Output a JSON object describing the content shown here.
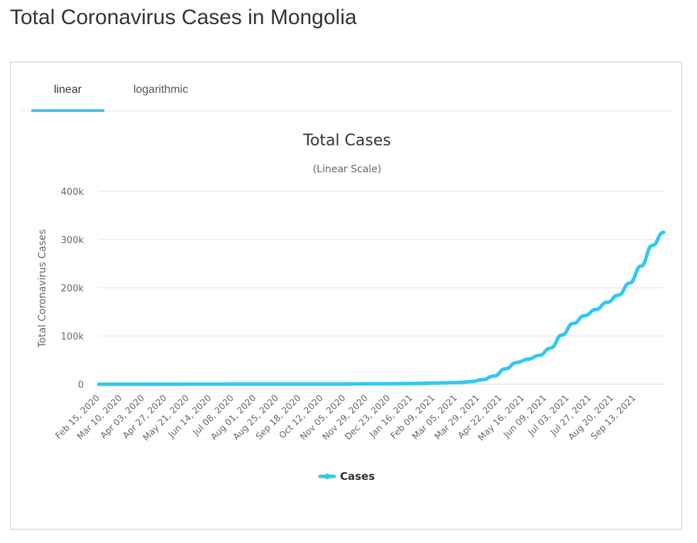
{
  "page": {
    "title": "Total Coronavirus Cases in Mongolia"
  },
  "tabs": [
    {
      "label": "linear",
      "active": true
    },
    {
      "label": "logarithmic",
      "active": false
    }
  ],
  "colors": {
    "accent": "#3ec8ee",
    "line": "#33c8f0",
    "grid": "#e6e6e6",
    "text": "#333333",
    "axis_text": "#666666"
  },
  "chart_data": {
    "type": "line",
    "title": "Total Cases",
    "subtitle": "(Linear Scale)",
    "ylabel": "Total Coronavirus Cases",
    "xlabel": "",
    "ylim": [
      0,
      400000
    ],
    "yticks": [
      0,
      100000,
      200000,
      300000,
      400000
    ],
    "ytick_labels": [
      "0",
      "100k",
      "200k",
      "300k",
      "400k"
    ],
    "xtick_labels": [
      "Feb 15, 2020",
      "Mar 10, 2020",
      "Apr 03, 2020",
      "Apr 27, 2020",
      "May 21, 2020",
      "Jun 14, 2020",
      "Jul 08, 2020",
      "Aug 01, 2020",
      "Aug 25, 2020",
      "Sep 18, 2020",
      "Oct 12, 2020",
      "Nov 05, 2020",
      "Nov 29, 2020",
      "Dec 23, 2020",
      "Jan 16, 2021",
      "Feb 09, 2021",
      "Mar 05, 2021",
      "Mar 29, 2021",
      "Apr 22, 2021",
      "May 16, 2021",
      "Jun 09, 2021",
      "Jul 03, 2021",
      "Jul 27, 2021",
      "Aug 20, 2021",
      "Sep 13, 2021"
    ],
    "grid": true,
    "legend": "bottom-center",
    "series": [
      {
        "name": "Cases",
        "x": [
          "2020-02-15",
          "2020-03-10",
          "2020-04-03",
          "2020-04-27",
          "2020-05-21",
          "2020-06-14",
          "2020-07-08",
          "2020-08-01",
          "2020-08-25",
          "2020-09-18",
          "2020-10-12",
          "2020-11-05",
          "2020-11-29",
          "2020-12-23",
          "2021-01-16",
          "2021-02-09",
          "2021-03-05",
          "2021-03-17",
          "2021-03-29",
          "2021-04-10",
          "2021-04-22",
          "2021-05-04",
          "2021-05-16",
          "2021-05-28",
          "2021-06-09",
          "2021-06-21",
          "2021-07-03",
          "2021-07-15",
          "2021-07-27",
          "2021-08-08",
          "2021-08-20",
          "2021-09-01",
          "2021-09-13",
          "2021-09-25",
          "2021-10-07"
        ],
        "values": [
          0,
          5,
          20,
          40,
          140,
          200,
          250,
          290,
          300,
          310,
          320,
          380,
          900,
          1100,
          1400,
          2500,
          3700,
          5500,
          9500,
          17000,
          32000,
          45000,
          52000,
          60000,
          75000,
          102000,
          126000,
          142000,
          155000,
          170000,
          185000,
          210000,
          245000,
          288000,
          315000
        ]
      }
    ]
  }
}
